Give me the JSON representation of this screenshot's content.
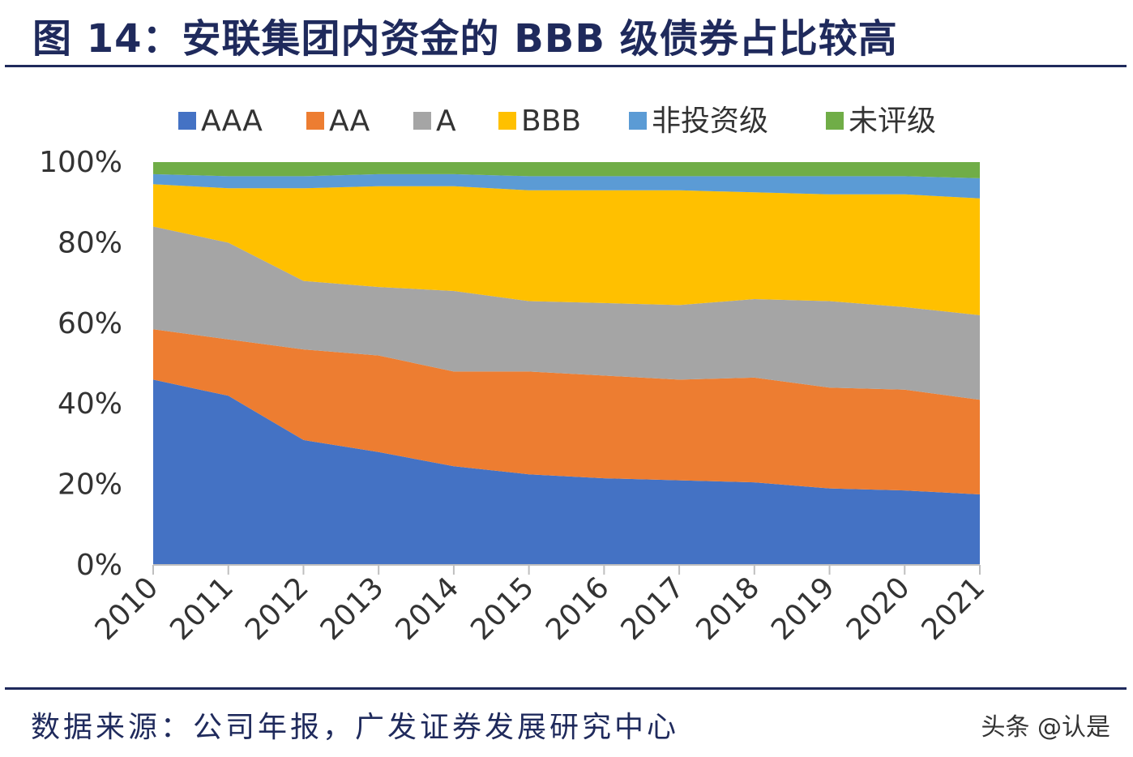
{
  "title": "图 14：安联集团内资金的 BBB 级债券占比较高",
  "source": "数据来源：公司年报，广发证券发展研究中心",
  "watermark": "头条 @认是",
  "chart_data": {
    "type": "area",
    "stacked": true,
    "title": "",
    "xlabel": "",
    "ylabel": "",
    "ylim": [
      0,
      100
    ],
    "y_ticks": [
      "0%",
      "20%",
      "40%",
      "60%",
      "80%",
      "100%"
    ],
    "categories": [
      "2010",
      "2011",
      "2012",
      "2013",
      "2014",
      "2015",
      "2016",
      "2017",
      "2018",
      "2019",
      "2020",
      "2021"
    ],
    "legend_position": "top",
    "series": [
      {
        "name": "AAA",
        "color": "#4472C4",
        "values": [
          46,
          42,
          31,
          28,
          24.5,
          22.5,
          21.5,
          21,
          20.5,
          19,
          18.5,
          17.5
        ]
      },
      {
        "name": "AA",
        "color": "#ED7D31",
        "values": [
          12.5,
          14,
          22.5,
          24,
          23.5,
          25.5,
          25.5,
          25,
          26,
          25,
          25,
          23.5
        ]
      },
      {
        "name": "A",
        "color": "#A5A5A5",
        "values": [
          25.5,
          24,
          17,
          17,
          20,
          17.5,
          18,
          18.5,
          19.5,
          21.5,
          20.5,
          21
        ]
      },
      {
        "name": "BBB",
        "color": "#FFC000",
        "values": [
          10.5,
          13.5,
          23,
          25,
          26,
          27.5,
          28,
          28.5,
          26.5,
          26.5,
          28,
          29
        ]
      },
      {
        "name": "非投资级",
        "color": "#5B9BD5",
        "values": [
          2.5,
          3,
          3,
          3,
          3,
          3.5,
          3.5,
          3.5,
          4,
          4.5,
          4.5,
          5
        ]
      },
      {
        "name": "未评级",
        "color": "#70AD47",
        "values": [
          3,
          3.5,
          3.5,
          3,
          3,
          3.5,
          3.5,
          3.5,
          3.5,
          3.5,
          3.5,
          4
        ]
      }
    ]
  }
}
